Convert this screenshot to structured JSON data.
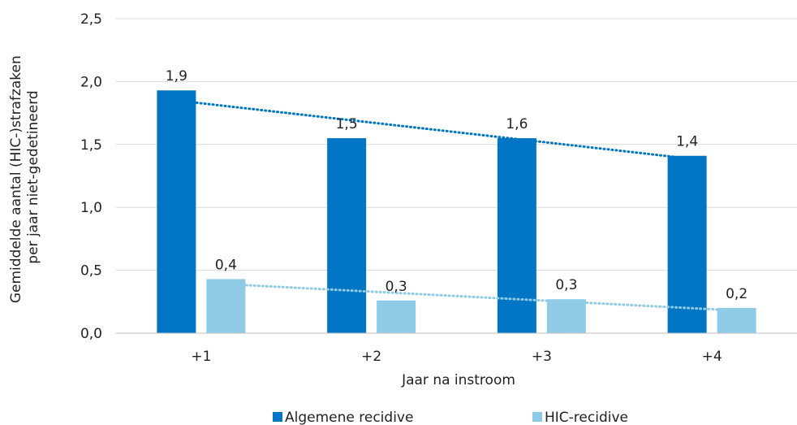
{
  "chart_data": {
    "type": "bar",
    "categories": [
      "+1",
      "+2",
      "+3",
      "+4"
    ],
    "series": [
      {
        "name": "Algemene recidive",
        "color": "#0076C4",
        "values": [
          1.93,
          1.55,
          1.55,
          1.41
        ],
        "labels": [
          "1,9",
          "1,5",
          "1,6",
          "1,4"
        ],
        "trendline": {
          "start": 1.85,
          "end": 1.39
        }
      },
      {
        "name": "HIC-recidive",
        "color": "#8FCBE6",
        "values": [
          0.43,
          0.26,
          0.27,
          0.2
        ],
        "labels": [
          "0,4",
          "0,3",
          "0,3",
          "0,2"
        ],
        "trendline": {
          "start": 0.39,
          "end": 0.18
        }
      }
    ],
    "xlabel": "Jaar na instroom",
    "ylabel_lines": [
      "Gemiddelde aantal (HIC-)strafzaken",
      "per jaar niet-gedetineerd"
    ],
    "ylim": [
      0,
      2.5
    ],
    "yticks": [
      {
        "value": 0,
        "label": "0,0"
      },
      {
        "value": 0.5,
        "label": "0,5"
      },
      {
        "value": 1,
        "label": "1,0"
      },
      {
        "value": 1.5,
        "label": "1,5"
      },
      {
        "value": 2,
        "label": "2,0"
      },
      {
        "value": 2.5,
        "label": "2,5"
      }
    ],
    "grid": true,
    "legend_position": "bottom"
  }
}
